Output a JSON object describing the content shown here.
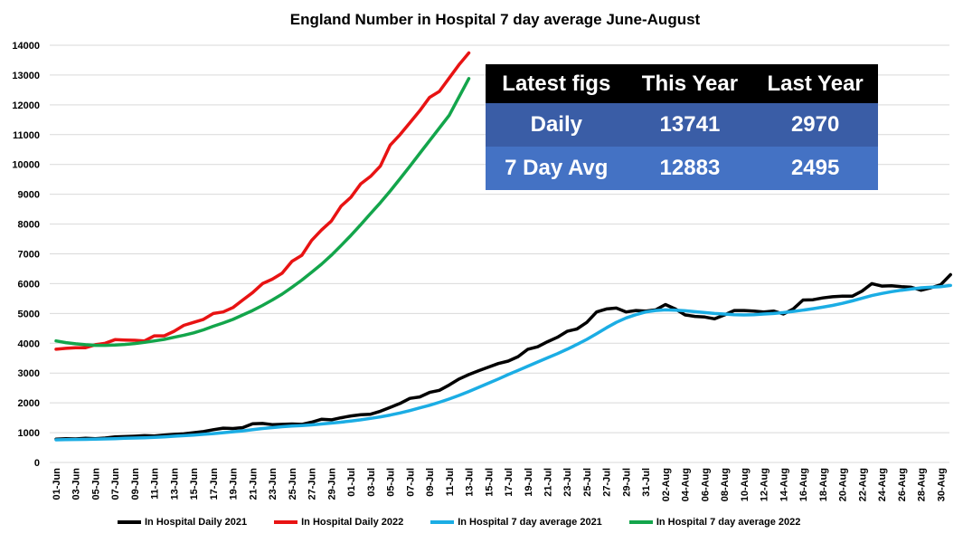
{
  "chart_data": {
    "type": "line",
    "title": "England Number in Hospital 7 day average June-August",
    "xlabel": "",
    "ylabel": "",
    "ylim": [
      0,
      14000
    ],
    "yticks": [
      0,
      1000,
      2000,
      3000,
      4000,
      5000,
      6000,
      7000,
      8000,
      9000,
      10000,
      11000,
      12000,
      13000,
      14000
    ],
    "grid": true,
    "legend": "bottom",
    "x_start": "01-Jun",
    "x_end": "31-Aug",
    "xtick_labels": [
      "01-Jun",
      "03-Jun",
      "05-Jun",
      "07-Jun",
      "09-Jun",
      "11-Jun",
      "13-Jun",
      "15-Jun",
      "17-Jun",
      "19-Jun",
      "21-Jun",
      "23-Jun",
      "25-Jun",
      "27-Jun",
      "29-Jun",
      "01-Jul",
      "03-Jul",
      "05-Jul",
      "07-Jul",
      "09-Jul",
      "11-Jul",
      "13-Jul",
      "15-Jul",
      "17-Jul",
      "19-Jul",
      "21-Jul",
      "23-Jul",
      "25-Jul",
      "27-Jul",
      "29-Jul",
      "31-Jul",
      "02-Aug",
      "04-Aug",
      "06-Aug",
      "08-Aug",
      "10-Aug",
      "12-Aug",
      "14-Aug",
      "16-Aug",
      "18-Aug",
      "20-Aug",
      "22-Aug",
      "24-Aug",
      "26-Aug",
      "28-Aug",
      "30-Aug"
    ],
    "series": [
      {
        "name": "In Hospital Daily 2021",
        "color": "#000000",
        "values": [
          780,
          800,
          790,
          810,
          800,
          820,
          860,
          870,
          880,
          900,
          890,
          920,
          940,
          960,
          1000,
          1040,
          1100,
          1150,
          1140,
          1170,
          1300,
          1310,
          1270,
          1280,
          1290,
          1280,
          1350,
          1450,
          1430,
          1500,
          1560,
          1600,
          1620,
          1720,
          1850,
          1980,
          2150,
          2200,
          2350,
          2420,
          2600,
          2800,
          2950,
          3080,
          3200,
          3320,
          3400,
          3550,
          3800,
          3880,
          4050,
          4200,
          4400,
          4480,
          4700,
          5050,
          5150,
          5180,
          5050,
          5100,
          5080,
          5120,
          5300,
          5150,
          4950,
          4900,
          4880,
          4820,
          4950,
          5100,
          5100,
          5080,
          5050,
          5080,
          4980,
          5150,
          5450,
          5460,
          5520,
          5560,
          5580,
          5580,
          5750,
          6000,
          5920,
          5930,
          5900,
          5880,
          5780,
          5860,
          5960,
          6300
        ]
      },
      {
        "name": "In Hospital Daily 2022",
        "color": "#E81313",
        "values": [
          3800,
          3830,
          3850,
          3850,
          3950,
          4000,
          4120,
          4110,
          4100,
          4080,
          4250,
          4250,
          4400,
          4600,
          4700,
          4800,
          5000,
          5050,
          5200,
          5450,
          5700,
          6000,
          6150,
          6350,
          6750,
          6950,
          7450,
          7800,
          8100,
          8600,
          8900,
          9350,
          9600,
          9950,
          10650,
          11000,
          11400,
          11800,
          12250,
          12450,
          12900,
          13350,
          13741
        ]
      },
      {
        "name": "In Hospital 7 day average 2021",
        "color": "#1BADE4",
        "values": [
          760,
          765,
          770,
          775,
          780,
          790,
          800,
          810,
          820,
          830,
          845,
          860,
          880,
          900,
          920,
          945,
          970,
          1000,
          1030,
          1060,
          1100,
          1140,
          1170,
          1200,
          1220,
          1240,
          1260,
          1290,
          1320,
          1350,
          1390,
          1430,
          1480,
          1530,
          1590,
          1660,
          1740,
          1830,
          1920,
          2020,
          2130,
          2250,
          2380,
          2520,
          2660,
          2800,
          2950,
          3090,
          3230,
          3370,
          3510,
          3650,
          3800,
          3960,
          4130,
          4320,
          4520,
          4700,
          4850,
          4960,
          5050,
          5100,
          5120,
          5110,
          5090,
          5060,
          5030,
          5000,
          4980,
          4960,
          4950,
          4960,
          4980,
          5000,
          5030,
          5070,
          5110,
          5160,
          5210,
          5270,
          5340,
          5420,
          5510,
          5600,
          5670,
          5730,
          5780,
          5820,
          5860,
          5880,
          5900,
          5940
        ]
      },
      {
        "name": "In Hospital 7 day average 2022",
        "color": "#13A54B",
        "values": [
          4080,
          4020,
          3980,
          3950,
          3930,
          3930,
          3940,
          3960,
          3990,
          4030,
          4080,
          4130,
          4200,
          4270,
          4350,
          4450,
          4570,
          4680,
          4800,
          4950,
          5100,
          5270,
          5450,
          5650,
          5880,
          6120,
          6380,
          6650,
          6950,
          7280,
          7620,
          7980,
          8350,
          8720,
          9110,
          9520,
          9940,
          10370,
          10800,
          11220,
          11650,
          12270,
          12883
        ]
      }
    ]
  },
  "table": {
    "headers": [
      "Latest figs",
      "This Year",
      "Last Year"
    ],
    "rows": [
      {
        "label": "Daily",
        "this_year": "13741",
        "last_year": "2970"
      },
      {
        "label": "7 Day Avg",
        "this_year": "12883",
        "last_year": "2495"
      }
    ]
  }
}
